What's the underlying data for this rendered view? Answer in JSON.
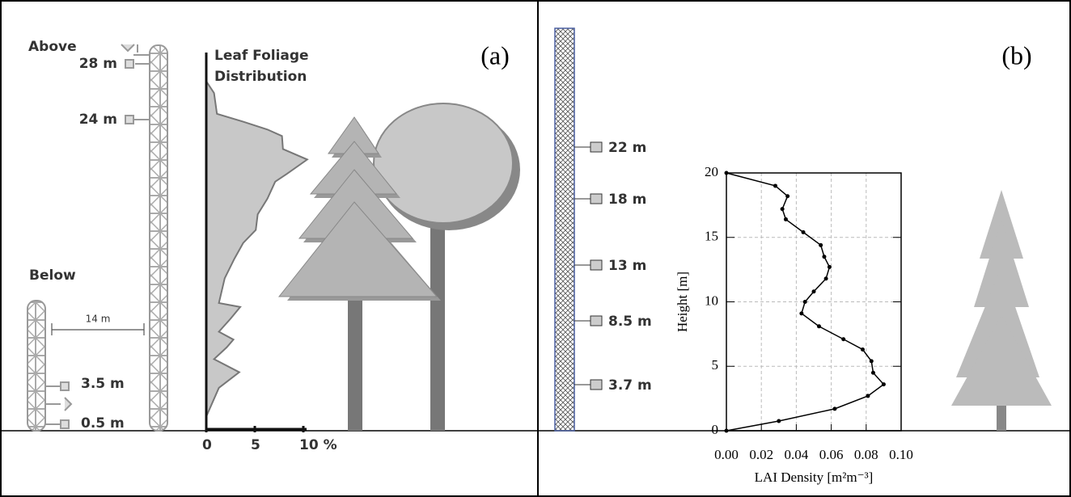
{
  "panel_a": {
    "label": "(a)",
    "above": "Above",
    "below": "Below",
    "spacing": "14 m",
    "tower_heights": [
      "28 m",
      "24 m",
      "3.5 m",
      "0.5 m"
    ]
  },
  "panel_b": {
    "label": "(b)",
    "sensor_heights": [
      "22 m",
      "18 m",
      "13 m",
      "8.5 m",
      "3.7 m"
    ]
  },
  "chart_data": [
    {
      "type": "area",
      "title": "Leaf Foliage Distribution",
      "color": "#c8c8c8",
      "values": [
        0,
        0.8,
        1.1,
        3.8,
        6.3,
        7.8,
        7.9,
        10.4,
        8.3,
        7.1,
        6.3,
        5.3,
        5.1,
        3.8,
        2.9,
        1.9,
        1.3,
        3.5,
        2.5,
        1.3,
        2.8,
        2.1,
        0.8,
        3.4,
        1.3,
        0
      ],
      "heights": [
        26.6,
        25.7,
        24.1,
        23.5,
        22.9,
        22.4,
        21.4,
        20.6,
        19.5,
        18.9,
        17.6,
        16.4,
        15.2,
        14.2,
        13.0,
        11.5,
        9.6,
        9.3,
        8.4,
        7.4,
        6.8,
        6.2,
        5.3,
        4.3,
        3.1,
        0.9
      ],
      "xlim": [
        0,
        10
      ],
      "ylim": [
        0,
        28.8
      ],
      "xticks": [
        0,
        5,
        {
          "value": 10,
          "label": "10 %"
        }
      ]
    },
    {
      "type": "line",
      "color": "#000000",
      "grid": true,
      "x_label": "LAI Density [m²m⁻³]",
      "y_label": "Height [m]",
      "values": [
        0,
        0.028,
        0.035,
        0.032,
        0.034,
        0.044,
        0.054,
        0.056,
        0.059,
        0.057,
        0.05,
        0.045,
        0.043,
        0.053,
        0.067,
        0.078,
        0.083,
        0.084,
        0.09,
        0.081,
        0.062,
        0.03,
        0
      ],
      "heights": [
        20,
        19.0,
        18.2,
        17.2,
        16.4,
        15.4,
        14.4,
        13.5,
        12.7,
        11.8,
        10.8,
        10.0,
        9.1,
        8.1,
        7.1,
        6.3,
        5.4,
        4.5,
        3.6,
        2.7,
        1.7,
        0.75,
        0
      ],
      "xlim": [
        0,
        0.1
      ],
      "ylim": [
        0,
        20
      ],
      "xticks": [
        {
          "value": 0,
          "label": "0.00"
        },
        {
          "value": 0.02,
          "label": "0.02"
        },
        {
          "value": 0.04,
          "label": "0.04"
        },
        {
          "value": 0.06,
          "label": "0.06"
        },
        {
          "value": 0.08,
          "label": "0.08"
        },
        {
          "value": 0.1,
          "label": "0.10"
        }
      ],
      "yticks": [
        0,
        5,
        10,
        15,
        20
      ]
    }
  ]
}
